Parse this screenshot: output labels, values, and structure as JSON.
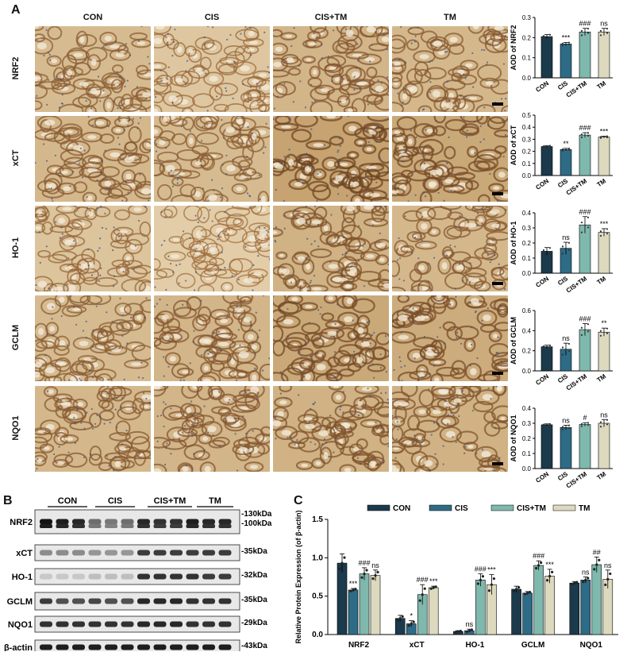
{
  "panel_a": {
    "letter": "A",
    "columns": [
      "CON",
      "CIS",
      "CIS+TM",
      "TM"
    ],
    "rows": [
      "NRF2",
      "xCT",
      "HO-1",
      "GCLM",
      "NQO1"
    ]
  },
  "panel_b": {
    "letter": "B",
    "groups": [
      "CON",
      "CIS",
      "CIS+TM",
      "TM"
    ],
    "proteins": [
      "NRF2",
      "xCT",
      "HO-1",
      "GCLM",
      "NQO1",
      "β-actin"
    ],
    "markers": [
      "-130kDa",
      "-100kDa",
      "-35kDa",
      "-32kDa",
      "-35kDa",
      "-29kDa",
      "-43kDa"
    ]
  },
  "panel_c": {
    "letter": "C"
  },
  "colors": {
    "CON": "#1b3a4b",
    "CIS": "#2e6b86",
    "CIS+TM": "#7fb8ad",
    "TM": "#ddd9bf"
  },
  "chart_data": [
    {
      "type": "bar",
      "categories": [
        "CON",
        "CIS",
        "CIS+TM",
        "TM"
      ],
      "values": [
        0.205,
        0.168,
        0.228,
        0.228
      ],
      "errors": [
        0.01,
        0.008,
        0.018,
        0.018
      ],
      "ylabel": "AOD of NRF2",
      "ylim": [
        0,
        0.3
      ],
      "ticks": [
        "0.0",
        "0.1",
        "0.2",
        "0.3"
      ],
      "annotations": [
        "",
        "***",
        "###",
        "ns"
      ]
    },
    {
      "type": "bar",
      "categories": [
        "CON",
        "CIS",
        "CIS+TM",
        "TM"
      ],
      "values": [
        0.24,
        0.215,
        0.335,
        0.318
      ],
      "errors": [
        0.008,
        0.01,
        0.02,
        0.008
      ],
      "ylabel": "AOD of xCT",
      "ylim": [
        0,
        0.5
      ],
      "ticks": [
        "0.0",
        "0.1",
        "0.2",
        "0.3",
        "0.4",
        "0.5"
      ],
      "annotations": [
        "",
        "**",
        "###",
        "***"
      ]
    },
    {
      "type": "bar",
      "categories": [
        "CON",
        "CIS",
        "CIS+TM",
        "TM"
      ],
      "values": [
        0.145,
        0.165,
        0.32,
        0.27
      ],
      "errors": [
        0.025,
        0.04,
        0.055,
        0.025
      ],
      "ylabel": "AOD of HO-1",
      "ylim": [
        0,
        0.4
      ],
      "ticks": [
        "0.0",
        "0.1",
        "0.2",
        "0.3",
        "0.4"
      ],
      "annotations": [
        "",
        "ns",
        "###",
        "***"
      ]
    },
    {
      "type": "bar",
      "categories": [
        "CON",
        "CIS",
        "CIS+TM",
        "TM"
      ],
      "values": [
        0.24,
        0.215,
        0.41,
        0.385
      ],
      "errors": [
        0.015,
        0.06,
        0.06,
        0.04
      ],
      "ylabel": "AOD of GCLM",
      "ylim": [
        0,
        0.6
      ],
      "ticks": [
        "0.0",
        "0.2",
        "0.4",
        "0.6"
      ],
      "annotations": [
        "",
        "ns",
        "###",
        "**"
      ]
    },
    {
      "type": "bar",
      "categories": [
        "CON",
        "CIS",
        "CIS+TM",
        "TM"
      ],
      "values": [
        0.29,
        0.272,
        0.292,
        0.3
      ],
      "errors": [
        0.006,
        0.015,
        0.012,
        0.025
      ],
      "ylabel": "AOD of NQO1",
      "ylim": [
        0,
        0.4
      ],
      "ticks": [
        "0.0",
        "0.1",
        "0.2",
        "0.3",
        "0.4"
      ],
      "annotations": [
        "",
        "ns",
        "#",
        "ns"
      ]
    },
    {
      "type": "bar",
      "categories": [
        "NRF2",
        "xCT",
        "HO-1",
        "GCLM",
        "NQO1"
      ],
      "series": [
        {
          "name": "CON",
          "values": [
            0.93,
            0.21,
            0.04,
            0.59,
            0.67
          ],
          "errors": [
            0.12,
            0.04,
            0.01,
            0.04,
            0.02
          ]
        },
        {
          "name": "CIS",
          "values": [
            0.58,
            0.14,
            0.05,
            0.54,
            0.71
          ],
          "errors": [
            0.02,
            0.04,
            0.02,
            0.02,
            0.04
          ]
        },
        {
          "name": "CIS+TM",
          "values": [
            0.79,
            0.52,
            0.71,
            0.9,
            0.91
          ],
          "errors": [
            0.08,
            0.13,
            0.08,
            0.06,
            0.1
          ]
        },
        {
          "name": "TM",
          "values": [
            0.77,
            0.61,
            0.65,
            0.76,
            0.72
          ],
          "errors": [
            0.07,
            0.02,
            0.13,
            0.09,
            0.12
          ]
        }
      ],
      "annotations": [
        [
          "",
          "***",
          "###",
          "ns"
        ],
        [
          "",
          "*",
          "###",
          "***"
        ],
        [
          "",
          "ns",
          "###",
          "***"
        ],
        [
          "",
          "",
          "###",
          "***"
        ],
        [
          "",
          "ns",
          "##",
          "ns"
        ]
      ],
      "ylabel": "Relative Protein Expression (of β-actin)",
      "ylim": [
        0,
        1.5
      ],
      "ticks": [
        "0.0",
        "0.5",
        "1.0",
        "1.5"
      ]
    }
  ]
}
